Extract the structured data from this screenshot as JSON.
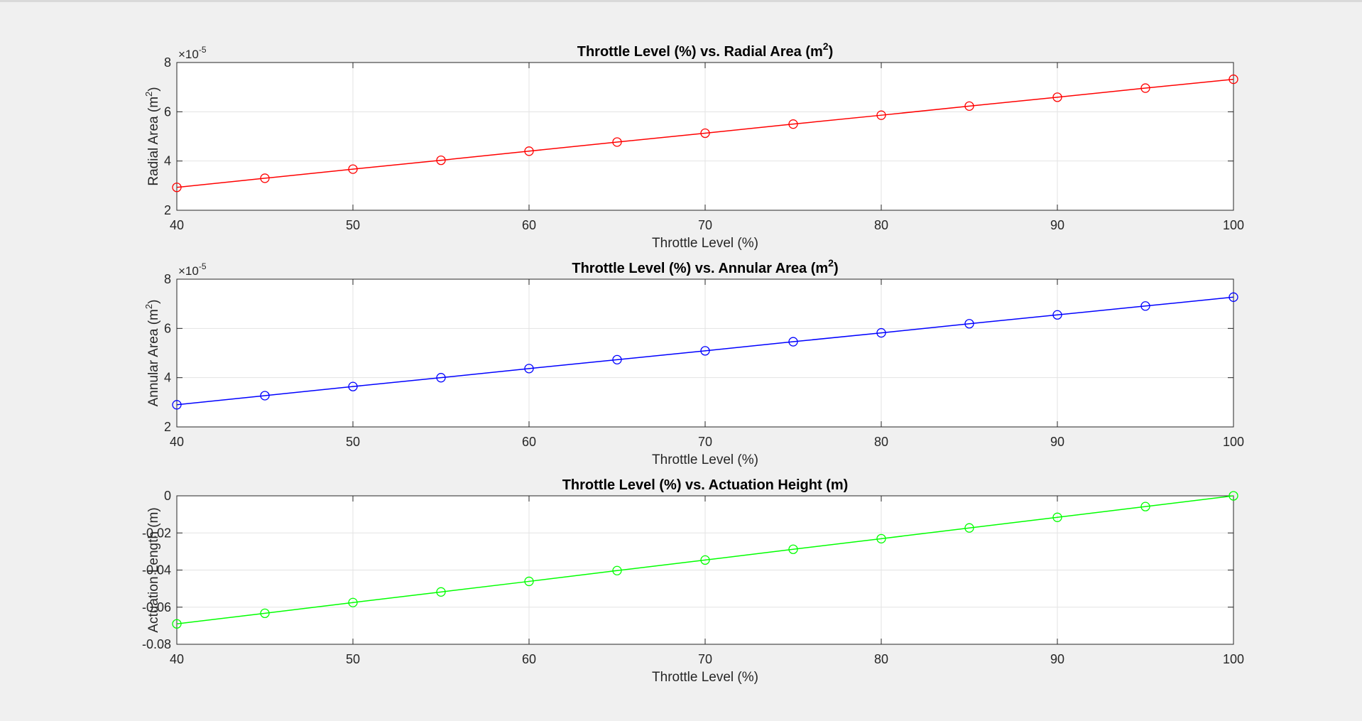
{
  "chart_data": [
    {
      "type": "line",
      "title": "Throttle Level (%) vs. Radial Area (m²)",
      "title_main": "Throttle Level (%) vs. Radial Area (m",
      "title_sup": "2",
      "title_end": ")",
      "xlabel": "Throttle Level (%)",
      "ylabel_main": "Radial Area (m",
      "ylabel_sup": "2",
      "ylabel_end": ")",
      "exponent_base": "×10",
      "exponent_power": "-5",
      "xlim": [
        40,
        100
      ],
      "ylim": [
        2,
        8
      ],
      "xticks": [
        40,
        50,
        60,
        70,
        80,
        90,
        100
      ],
      "xtick_labels": [
        "40",
        "50",
        "60",
        "70",
        "80",
        "90",
        "100"
      ],
      "yticks": [
        2,
        4,
        6,
        8
      ],
      "ytick_labels": [
        "2",
        "4",
        "6",
        "8"
      ],
      "grid": true,
      "color": "#ff0000",
      "marker": "circle",
      "series": [
        {
          "x": [
            40,
            45,
            50,
            55,
            60,
            65,
            70,
            75,
            80,
            85,
            90,
            95,
            100
          ],
          "y": [
            2.93,
            3.3,
            3.67,
            4.03,
            4.4,
            4.77,
            5.13,
            5.5,
            5.86,
            6.23,
            6.59,
            6.96,
            7.32
          ]
        }
      ]
    },
    {
      "type": "line",
      "title": "Throttle Level (%) vs. Annular Area (m²)",
      "title_main": "Throttle Level (%) vs. Annular Area (m",
      "title_sup": "2",
      "title_end": ")",
      "xlabel": "Throttle Level (%)",
      "ylabel_main": "Annular Area (m",
      "ylabel_sup": "2",
      "ylabel_end": ")",
      "exponent_base": "×10",
      "exponent_power": "-5",
      "xlim": [
        40,
        100
      ],
      "ylim": [
        2,
        8
      ],
      "xticks": [
        40,
        50,
        60,
        70,
        80,
        90,
        100
      ],
      "xtick_labels": [
        "40",
        "50",
        "60",
        "70",
        "80",
        "90",
        "100"
      ],
      "yticks": [
        2,
        4,
        6,
        8
      ],
      "ytick_labels": [
        "2",
        "4",
        "6",
        "8"
      ],
      "grid": true,
      "color": "#0000ff",
      "marker": "circle",
      "series": [
        {
          "x": [
            40,
            45,
            50,
            55,
            60,
            65,
            70,
            75,
            80,
            85,
            90,
            95,
            100
          ],
          "y": [
            2.9,
            3.27,
            3.64,
            4.0,
            4.37,
            4.73,
            5.09,
            5.46,
            5.82,
            6.19,
            6.55,
            6.91,
            7.27
          ]
        }
      ]
    },
    {
      "type": "line",
      "title": "Throttle Level (%) vs. Actuation Height (m)",
      "title_main": "Throttle Level (%) vs. Actuation Height (m)",
      "title_sup": "",
      "title_end": "",
      "xlabel": "Throttle Level (%)",
      "ylabel_main": "Actuation Length (m)",
      "ylabel_sup": "",
      "ylabel_end": "",
      "exponent_base": "",
      "exponent_power": "",
      "xlim": [
        40,
        100
      ],
      "ylim": [
        -0.08,
        0
      ],
      "xticks": [
        40,
        50,
        60,
        70,
        80,
        90,
        100
      ],
      "xtick_labels": [
        "40",
        "50",
        "60",
        "70",
        "80",
        "90",
        "100"
      ],
      "yticks": [
        -0.08,
        -0.06,
        -0.04,
        -0.02,
        0
      ],
      "ytick_labels": [
        "-0.08",
        "-0.06",
        "-0.04",
        "-0.02",
        "0"
      ],
      "grid": true,
      "color": "#00ff00",
      "marker": "circle",
      "series": [
        {
          "x": [
            40,
            45,
            50,
            55,
            60,
            65,
            70,
            75,
            80,
            85,
            90,
            95,
            100
          ],
          "y": [
            -0.069,
            -0.0633,
            -0.0575,
            -0.0518,
            -0.0461,
            -0.0403,
            -0.0346,
            -0.0288,
            -0.0231,
            -0.0173,
            -0.0116,
            -0.0058,
            0
          ]
        }
      ]
    }
  ]
}
